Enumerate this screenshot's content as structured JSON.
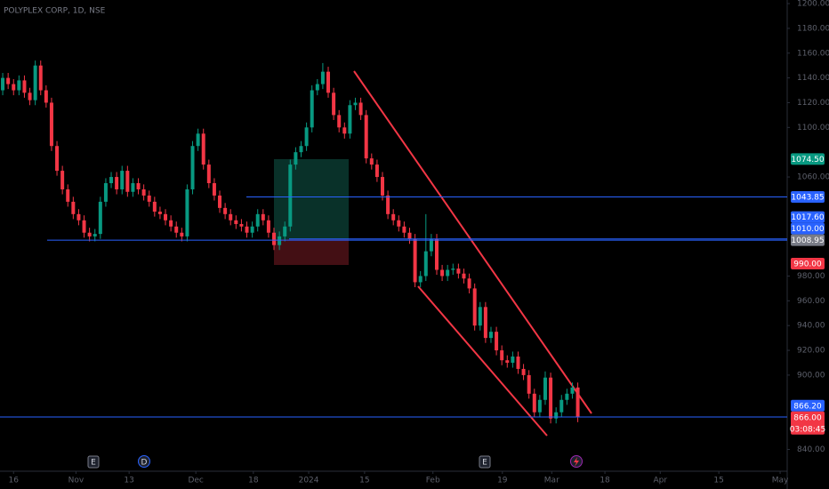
{
  "chart_data": {
    "type": "candlestick",
    "title": "POLYPLEX CORP, 1D, NSE",
    "up_color": "#089981",
    "down_color": "#f23645",
    "open": [
      1130,
      1140,
      1135,
      1130,
      1138,
      1128,
      1122,
      1150,
      1130,
      1120,
      1085,
      1065,
      1050,
      1040,
      1030,
      1025,
      1015,
      1012,
      1014,
      1040,
      1055,
      1060,
      1050,
      1065,
      1048,
      1055,
      1050,
      1045,
      1040,
      1032,
      1030,
      1025,
      1020,
      1015,
      1012,
      1050,
      1085,
      1095,
      1070,
      1055,
      1045,
      1035,
      1030,
      1025,
      1022,
      1020,
      1015,
      1020,
      1030,
      1025,
      1015,
      1005,
      1012,
      1020,
      1070,
      1080,
      1085,
      1100,
      1130,
      1135,
      1145,
      1128,
      1110,
      1100,
      1095,
      1118,
      1120,
      1110,
      1075,
      1070,
      1060,
      1045,
      1030,
      1025,
      1020,
      1015,
      1010,
      975,
      980,
      1000,
      1010,
      985,
      980,
      985,
      986,
      982,
      978,
      970,
      940,
      955,
      930,
      935,
      920,
      912,
      910,
      915,
      905,
      900,
      885,
      870,
      880,
      898,
      865,
      870,
      880,
      885,
      890
    ],
    "high": [
      1144,
      1144,
      1139,
      1142,
      1142,
      1132,
      1154,
      1154,
      1134,
      1124,
      1089,
      1069,
      1054,
      1044,
      1034,
      1029,
      1019,
      1018,
      1044,
      1059,
      1064,
      1064,
      1069,
      1069,
      1059,
      1059,
      1054,
      1049,
      1044,
      1036,
      1034,
      1029,
      1024,
      1019,
      1054,
      1089,
      1099,
      1099,
      1074,
      1059,
      1049,
      1039,
      1034,
      1029,
      1026,
      1024,
      1024,
      1034,
      1034,
      1029,
      1019,
      1016,
      1024,
      1074,
      1084,
      1089,
      1104,
      1134,
      1139,
      1152,
      1149,
      1132,
      1114,
      1104,
      1122,
      1124,
      1124,
      1114,
      1079,
      1074,
      1064,
      1049,
      1034,
      1029,
      1024,
      1019,
      1014,
      984,
      1030,
      1014,
      1014,
      989,
      989,
      990,
      990,
      986,
      982,
      974,
      959,
      959,
      939,
      939,
      924,
      916,
      919,
      919,
      909,
      904,
      889,
      884,
      903,
      902,
      874,
      884,
      889,
      894,
      894
    ],
    "low": [
      1126,
      1131,
      1126,
      1126,
      1124,
      1118,
      1118,
      1126,
      1116,
      1081,
      1061,
      1046,
      1036,
      1026,
      1021,
      1011,
      1008,
      1008,
      1010,
      1036,
      1051,
      1046,
      1046,
      1044,
      1044,
      1046,
      1041,
      1036,
      1028,
      1026,
      1021,
      1016,
      1011,
      1008,
      1008,
      1046,
      1081,
      1066,
      1051,
      1041,
      1031,
      1026,
      1021,
      1018,
      1016,
      1011,
      1011,
      1016,
      1021,
      1011,
      1001,
      1001,
      1008,
      1016,
      1066,
      1076,
      1081,
      1096,
      1126,
      1131,
      1124,
      1106,
      1096,
      1091,
      1091,
      1114,
      1106,
      1071,
      1066,
      1056,
      1041,
      1026,
      1021,
      1016,
      1011,
      1006,
      971,
      971,
      976,
      996,
      981,
      976,
      976,
      981,
      978,
      974,
      966,
      936,
      936,
      926,
      926,
      916,
      908,
      906,
      906,
      901,
      896,
      881,
      866,
      866,
      876,
      861,
      861,
      866,
      876,
      881,
      862
    ],
    "close": [
      1140,
      1135,
      1130,
      1138,
      1128,
      1122,
      1150,
      1130,
      1120,
      1085,
      1065,
      1050,
      1040,
      1030,
      1025,
      1015,
      1012,
      1014,
      1040,
      1055,
      1060,
      1050,
      1065,
      1048,
      1055,
      1050,
      1045,
      1040,
      1032,
      1030,
      1025,
      1020,
      1015,
      1012,
      1050,
      1085,
      1095,
      1070,
      1055,
      1045,
      1035,
      1030,
      1025,
      1022,
      1020,
      1015,
      1020,
      1030,
      1025,
      1015,
      1005,
      1012,
      1020,
      1070,
      1080,
      1085,
      1100,
      1130,
      1135,
      1145,
      1128,
      1110,
      1100,
      1095,
      1118,
      1120,
      1110,
      1075,
      1070,
      1060,
      1045,
      1030,
      1025,
      1020,
      1015,
      1010,
      975,
      980,
      1000,
      1010,
      985,
      980,
      985,
      986,
      982,
      978,
      970,
      940,
      955,
      930,
      935,
      920,
      912,
      910,
      915,
      905,
      900,
      885,
      870,
      880,
      898,
      865,
      870,
      880,
      885,
      890,
      866
    ],
    "xlim": [
      -0.5,
      144.6
    ],
    "xticks": [
      {
        "value": 2,
        "label": "16"
      },
      {
        "value": 13.5,
        "label": "Nov"
      },
      {
        "value": 23.3,
        "label": "13"
      },
      {
        "value": 35.6,
        "label": "Dec"
      },
      {
        "value": 46.2,
        "label": "18"
      },
      {
        "value": 56.4,
        "label": "2024"
      },
      {
        "value": 66.7,
        "label": "15"
      },
      {
        "value": 79.3,
        "label": "Feb"
      },
      {
        "value": 92.1,
        "label": "19"
      },
      {
        "value": 101.2,
        "label": "Mar"
      },
      {
        "value": 111,
        "label": "18"
      },
      {
        "value": 121.2,
        "label": "Apr"
      },
      {
        "value": 132,
        "label": "15"
      },
      {
        "value": 143.3,
        "label": "May"
      }
    ],
    "ylim": [
      822.4,
      1202.9
    ],
    "yticks": [
      {
        "value": 1200,
        "label": "1200.00"
      },
      {
        "value": 1180,
        "label": "1180.00"
      },
      {
        "value": 1160,
        "label": "1160.00"
      },
      {
        "value": 1140,
        "label": "1140.00"
      },
      {
        "value": 1120,
        "label": "1120.00"
      },
      {
        "value": 1100,
        "label": "1100.00"
      },
      {
        "value": 1060,
        "label": "1060.00"
      },
      {
        "value": 980,
        "label": "980.00"
      },
      {
        "value": 960,
        "label": "960.00"
      },
      {
        "value": 940,
        "label": "940.00"
      },
      {
        "value": 920,
        "label": "920.00"
      },
      {
        "value": 900,
        "label": "900.00"
      },
      {
        "value": 840,
        "label": "840.00"
      }
    ],
    "price_labels": [
      {
        "value": 1074.5,
        "label": "1074.50",
        "color": "#089981"
      },
      {
        "value": 1043.85,
        "label": "1043.85",
        "color": "#2962ff"
      },
      {
        "value": 1017.6,
        "label": "1017.60",
        "color": "#2962ff"
      },
      {
        "value": 1010,
        "label": "1010.00",
        "color": "#2962ff"
      },
      {
        "value": 1008.95,
        "label": "1008.95",
        "color": "#787b86"
      },
      {
        "value": 990,
        "label": "990.00",
        "color": "#f23645"
      },
      {
        "value": 866.2,
        "label": "866.20",
        "color": "#2962ff"
      },
      {
        "value": 866,
        "label": "866.00",
        "color": "#f23645"
      }
    ],
    "countdown": "03:08:45",
    "events": [
      "E",
      "D",
      "E"
    ]
  }
}
